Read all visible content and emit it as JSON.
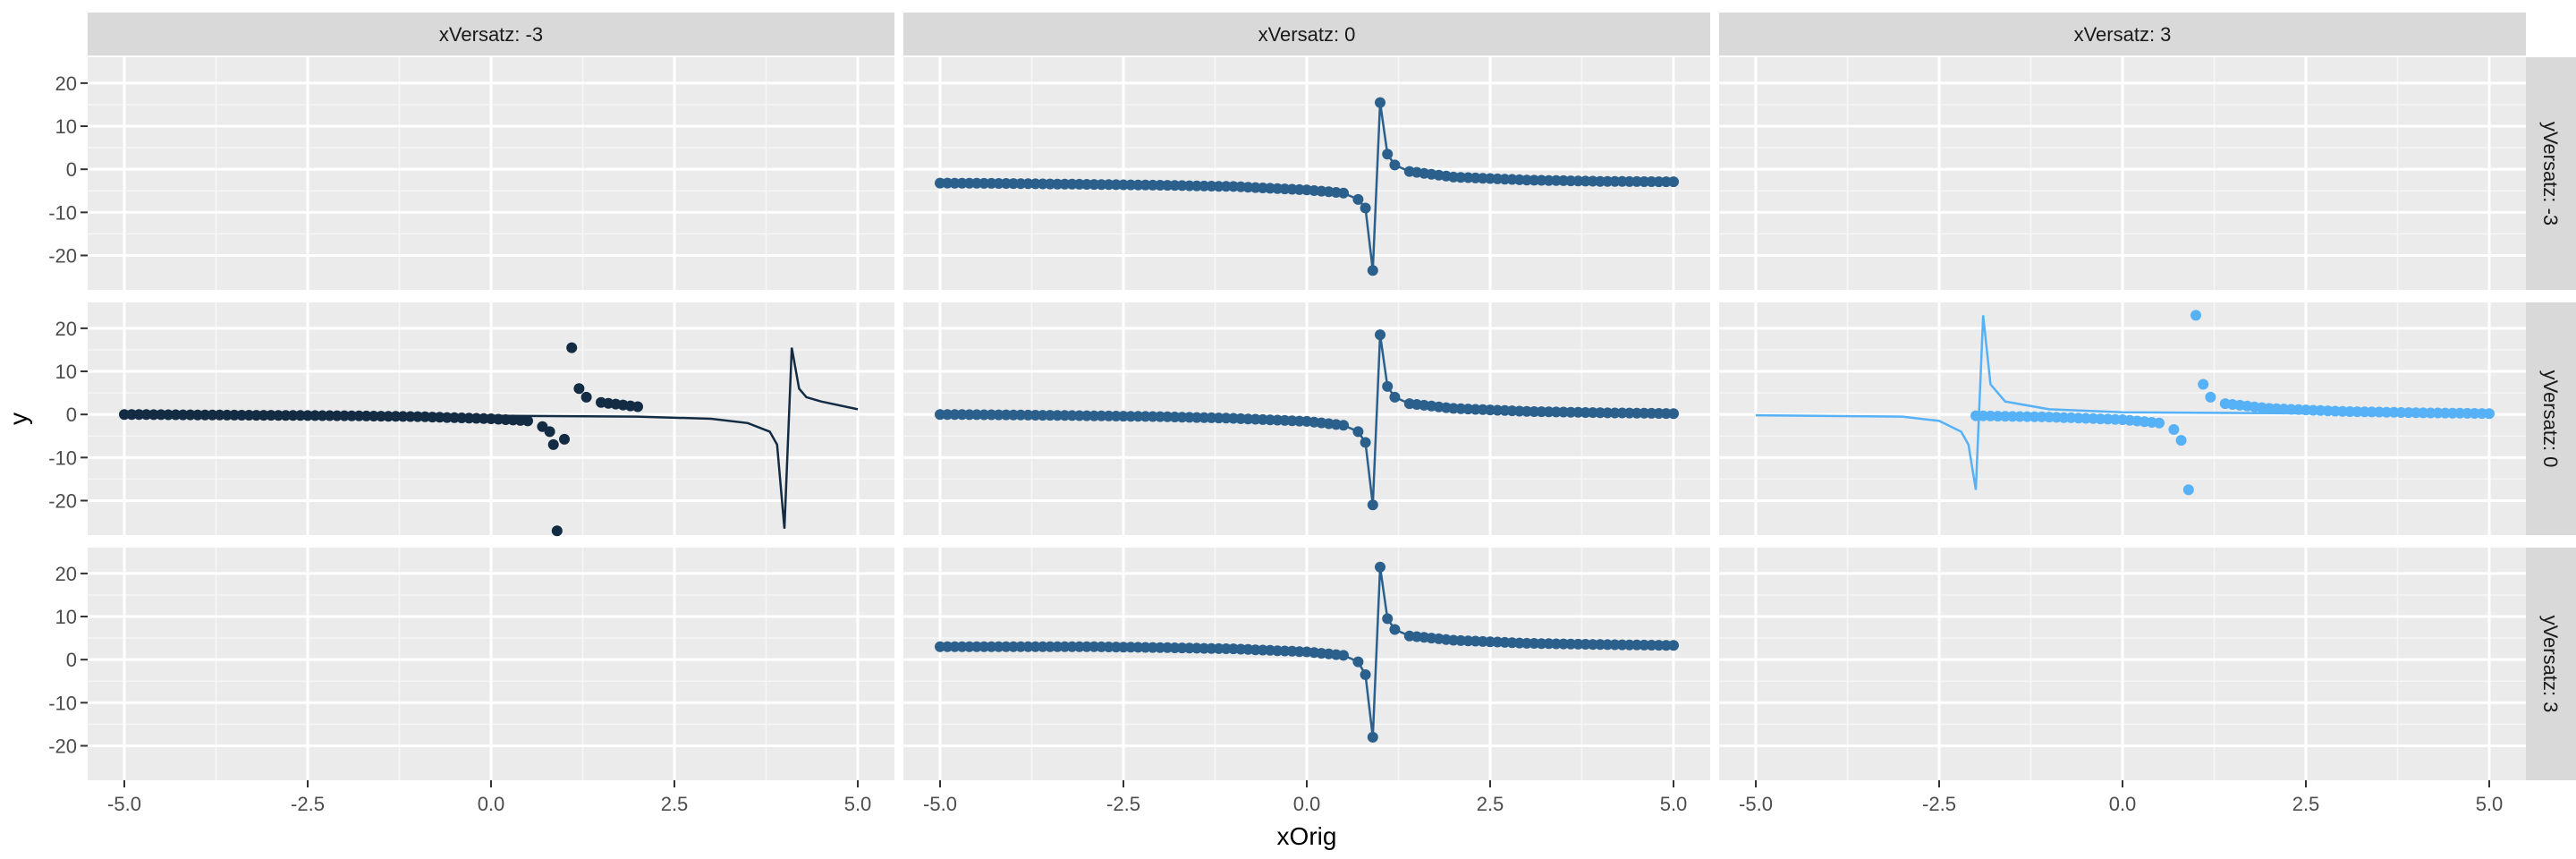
{
  "chart_data": {
    "type": "scatter",
    "xlabel": "xOrig",
    "ylabel": "y",
    "xlim": [
      -5.5,
      5.5
    ],
    "ylim": [
      -28,
      26
    ],
    "x_ticks": [
      -5.0,
      -2.5,
      0.0,
      2.5,
      5.0
    ],
    "x_tick_labels": [
      "-5.0",
      "-2.5",
      "0.0",
      "2.5",
      "5.0"
    ],
    "y_ticks": [
      -20,
      -10,
      0,
      10,
      20
    ],
    "y_tick_labels": [
      "-20",
      "-10",
      "0",
      "10",
      "20"
    ],
    "grid": true,
    "facet_cols": [
      "xVersatz: -3",
      "xVersatz: 0",
      "xVersatz: 3"
    ],
    "facet_rows": [
      "yVersatz: -3",
      "yVersatz: 0",
      "yVersatz: 3"
    ],
    "colors": {
      "dark": "#132b43",
      "mid": "#2b5f8c",
      "light": "#56b1f7"
    },
    "panels": [
      {
        "row": 0,
        "col": 1,
        "color": "mid",
        "line": "points",
        "points": [
          [
            -5.0,
            -3.2
          ],
          [
            -4.0,
            -3.3
          ],
          [
            -3.0,
            -3.5
          ],
          [
            -2.0,
            -3.7
          ],
          [
            -1.0,
            -4.0
          ],
          [
            0.0,
            -4.8
          ],
          [
            0.5,
            -5.5
          ],
          [
            0.7,
            -7.0
          ],
          [
            0.8,
            -9.0
          ],
          [
            0.9,
            -23.5
          ],
          [
            1.0,
            15.5
          ],
          [
            1.1,
            3.5
          ],
          [
            1.2,
            1.0
          ],
          [
            1.4,
            -0.5
          ],
          [
            2.0,
            -1.8
          ],
          [
            3.0,
            -2.5
          ],
          [
            4.0,
            -2.8
          ],
          [
            5.0,
            -2.9
          ]
        ]
      },
      {
        "row": 1,
        "col": 0,
        "color": "dark",
        "line": "curve",
        "points": [
          [
            -5.0,
            0
          ],
          [
            -4.0,
            -0.1
          ],
          [
            -3.0,
            -0.2
          ],
          [
            -2.0,
            -0.3
          ],
          [
            -1.0,
            -0.5
          ],
          [
            0.0,
            -1.0
          ],
          [
            0.5,
            -1.5
          ],
          [
            0.7,
            -2.8
          ],
          [
            0.8,
            -4.0
          ],
          [
            0.85,
            -7.0
          ],
          [
            0.9,
            -27.0
          ],
          [
            1.1,
            15.5
          ],
          [
            1.2,
            6.0
          ],
          [
            1.3,
            4.0
          ],
          [
            1.5,
            2.8
          ],
          [
            2.0,
            1.8
          ]
        ],
        "curve": [
          [
            -5.0,
            -0.2
          ],
          [
            0.0,
            -0.3
          ],
          [
            2.0,
            -0.5
          ],
          [
            3.0,
            -1.0
          ],
          [
            3.5,
            -2.0
          ],
          [
            3.8,
            -4.0
          ],
          [
            3.9,
            -7.0
          ],
          [
            4.0,
            -26.5
          ],
          [
            4.1,
            15.5
          ],
          [
            4.2,
            6.0
          ],
          [
            4.3,
            4.0
          ],
          [
            4.5,
            3.0
          ],
          [
            5.0,
            1.2
          ]
        ]
      },
      {
        "row": 1,
        "col": 1,
        "color": "mid",
        "line": "points",
        "points": [
          [
            -5.0,
            0
          ],
          [
            -4.0,
            -0.1
          ],
          [
            -3.0,
            -0.3
          ],
          [
            -2.0,
            -0.5
          ],
          [
            -1.0,
            -0.9
          ],
          [
            0.0,
            -1.6
          ],
          [
            0.5,
            -2.5
          ],
          [
            0.7,
            -4.0
          ],
          [
            0.8,
            -6.5
          ],
          [
            0.9,
            -21.0
          ],
          [
            1.0,
            18.5
          ],
          [
            1.1,
            6.5
          ],
          [
            1.2,
            4.0
          ],
          [
            1.4,
            2.5
          ],
          [
            2.0,
            1.4
          ],
          [
            3.0,
            0.7
          ],
          [
            4.0,
            0.4
          ],
          [
            5.0,
            0.2
          ]
        ]
      },
      {
        "row": 1,
        "col": 2,
        "color": "light",
        "line": "curve",
        "points": [
          [
            -2.0,
            -0.3
          ],
          [
            -1.0,
            -0.6
          ],
          [
            0.0,
            -1.2
          ],
          [
            0.5,
            -2.0
          ],
          [
            0.7,
            -3.5
          ],
          [
            0.8,
            -6.0
          ],
          [
            0.9,
            -17.5
          ],
          [
            1.0,
            23.0
          ],
          [
            1.1,
            7.0
          ],
          [
            1.2,
            4.0
          ],
          [
            1.4,
            2.5
          ],
          [
            2.0,
            1.4
          ],
          [
            3.0,
            0.7
          ],
          [
            4.0,
            0.4
          ],
          [
            5.0,
            0.2
          ]
        ],
        "curve": [
          [
            -5.0,
            -0.2
          ],
          [
            -3.0,
            -0.5
          ],
          [
            -2.5,
            -1.5
          ],
          [
            -2.2,
            -4.0
          ],
          [
            -2.1,
            -7.0
          ],
          [
            -2.0,
            -17.5
          ],
          [
            -1.9,
            23.0
          ],
          [
            -1.8,
            7.0
          ],
          [
            -1.6,
            3.0
          ],
          [
            -1.0,
            1.2
          ],
          [
            0.0,
            0.5
          ],
          [
            5.0,
            0.0
          ]
        ]
      },
      {
        "row": 2,
        "col": 1,
        "color": "mid",
        "line": "points",
        "points": [
          [
            -5.0,
            3.0
          ],
          [
            -4.0,
            3.0
          ],
          [
            -3.0,
            3.0
          ],
          [
            -2.0,
            2.8
          ],
          [
            -1.0,
            2.5
          ],
          [
            0.0,
            1.8
          ],
          [
            0.5,
            1.0
          ],
          [
            0.7,
            -0.5
          ],
          [
            0.8,
            -3.5
          ],
          [
            0.9,
            -18.0
          ],
          [
            1.0,
            21.5
          ],
          [
            1.1,
            9.5
          ],
          [
            1.2,
            7.0
          ],
          [
            1.4,
            5.5
          ],
          [
            2.0,
            4.5
          ],
          [
            3.0,
            3.8
          ],
          [
            4.0,
            3.5
          ],
          [
            5.0,
            3.3
          ]
        ]
      }
    ]
  }
}
